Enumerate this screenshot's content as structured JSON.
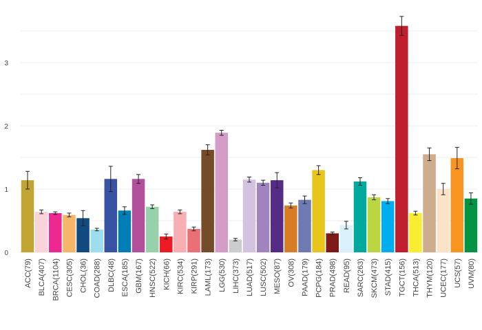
{
  "chart_data": {
    "type": "bar",
    "title": "",
    "xlabel": "",
    "ylabel": "",
    "ylim": [
      0,
      3.75
    ],
    "yticks": [
      0,
      1,
      2,
      3
    ],
    "grid": true,
    "categories": [
      "ACC(79)",
      "BLCA(407)",
      "BRCA(1104)",
      "CESC(305)",
      "CHOL(36)",
      "COAD(288)",
      "DLBC(48)",
      "ESCA(185)",
      "GBM(167)",
      "HNSC(522)",
      "KICH(66)",
      "KIRC(534)",
      "KIRP(291)",
      "LAML(173)",
      "LGG(530)",
      "LIHC(373)",
      "LUAD(517)",
      "LUSC(502)",
      "MESO(87)",
      "OV(308)",
      "PAAD(179)",
      "PCPG(184)",
      "PRAD(498)",
      "READ(95)",
      "SARC(263)",
      "SKCM(473)",
      "STAD(415)",
      "TGCT(156)",
      "THCA(513)",
      "THYM(120)",
      "UCEC(177)",
      "UCS(57)",
      "UVM(80)"
    ],
    "values": [
      1.14,
      0.64,
      0.62,
      0.59,
      0.54,
      0.36,
      1.16,
      0.66,
      1.16,
      0.72,
      0.25,
      0.64,
      0.37,
      1.62,
      1.89,
      0.2,
      1.15,
      1.1,
      1.14,
      0.74,
      0.83,
      1.3,
      0.3,
      0.43,
      1.12,
      0.87,
      0.81,
      3.58,
      0.62,
      1.55,
      1.0,
      1.49,
      0.85
    ],
    "errors": [
      0.14,
      0.03,
      0.02,
      0.03,
      0.12,
      0.02,
      0.2,
      0.06,
      0.07,
      0.03,
      0.04,
      0.03,
      0.03,
      0.08,
      0.04,
      0.02,
      0.04,
      0.04,
      0.12,
      0.04,
      0.06,
      0.07,
      0.02,
      0.06,
      0.06,
      0.04,
      0.04,
      0.15,
      0.03,
      0.1,
      0.09,
      0.17,
      0.09
    ],
    "colors": [
      "#c1a432",
      "#fad2d9",
      "#ed2891",
      "#f6b667",
      "#104a7f",
      "#9edcf0",
      "#3953a4",
      "#007eb5",
      "#b2509e",
      "#97d1a9",
      "#ed1c24",
      "#f8afb3",
      "#ea7075",
      "#754c29",
      "#d49dc7",
      "#cacccd",
      "#d3c3e0",
      "#a084bd",
      "#542c88",
      "#d97d25",
      "#6e7bb3",
      "#e8c51d",
      "#7e1918",
      "#daf1fc",
      "#00a99d",
      "#bbd642",
      "#00aeef",
      "#be1e2d",
      "#f9ed32",
      "#cead8e",
      "#fbe3c7",
      "#f89420",
      "#009444"
    ]
  }
}
